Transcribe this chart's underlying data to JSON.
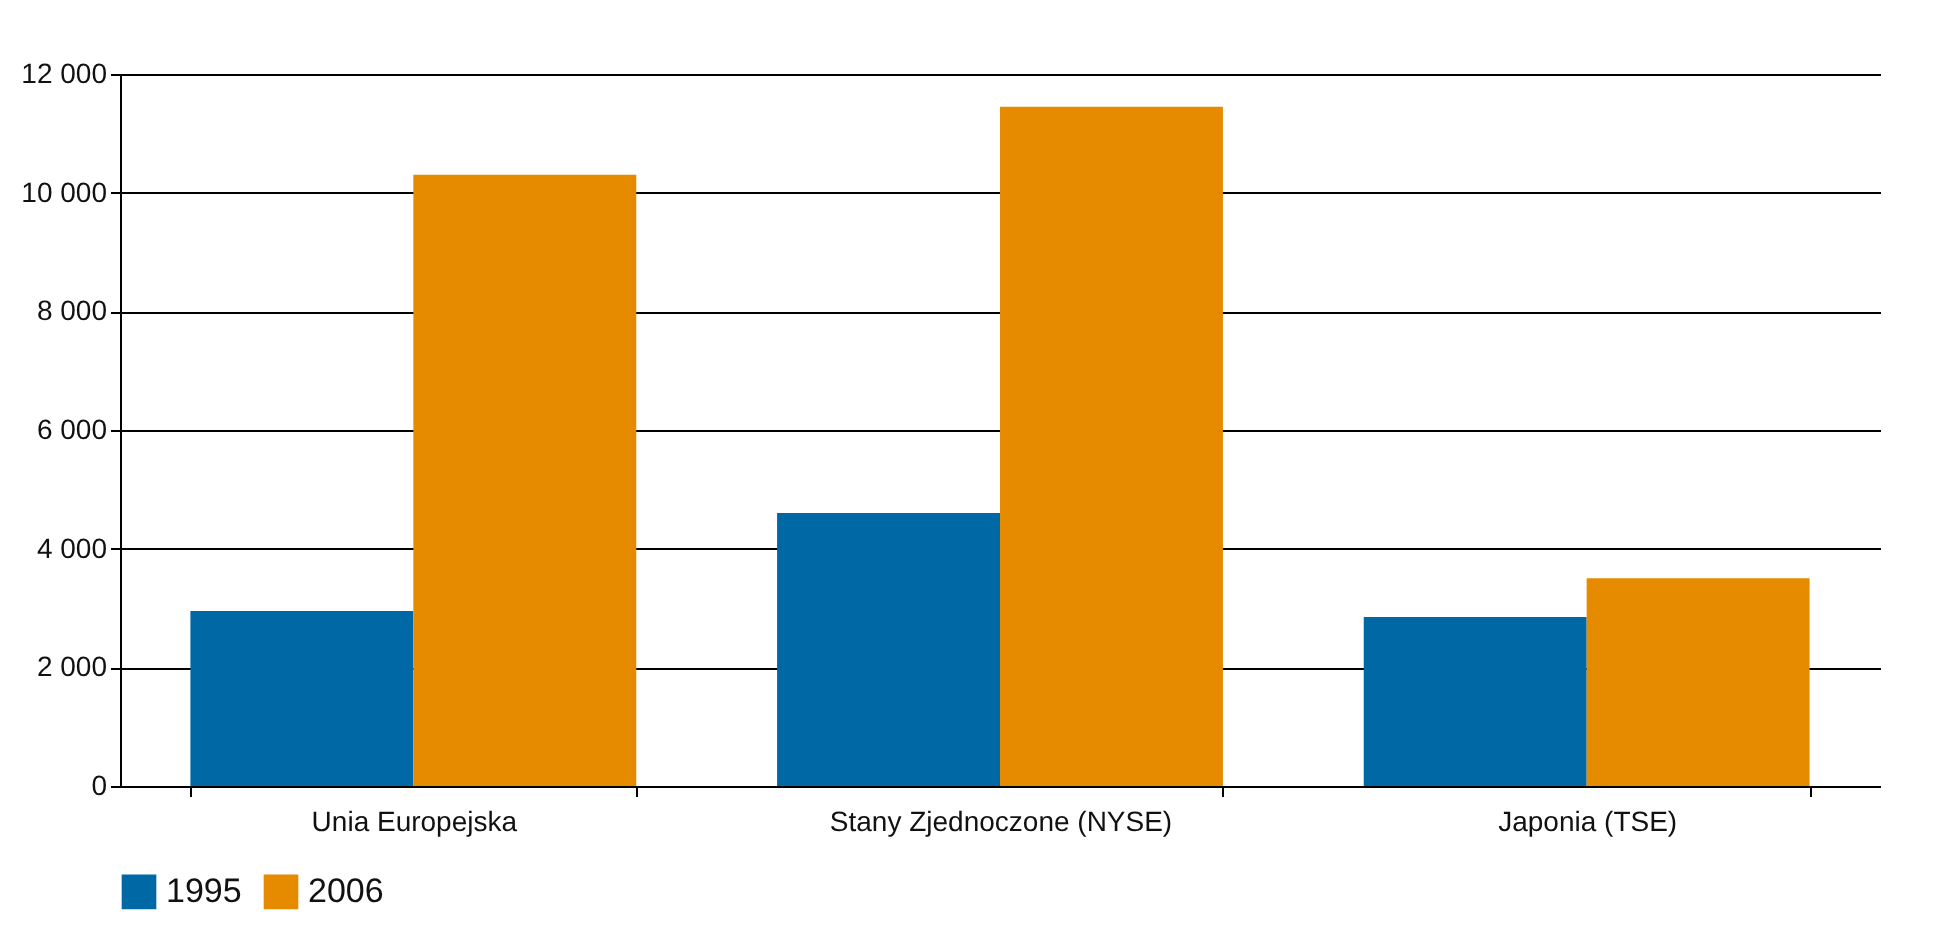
{
  "chart_data": {
    "type": "bar",
    "categories": [
      "Unia Europejska",
      "Stany Zjednoczone (NYSE)",
      "Japonia (TSE)"
    ],
    "series": [
      {
        "name": "1995",
        "color": "#0068a5",
        "values": [
          2950,
          4600,
          2850
        ]
      },
      {
        "name": "2006",
        "color": "#e68a00",
        "values": [
          10300,
          11450,
          3500
        ]
      }
    ],
    "ylim": [
      0,
      12000
    ],
    "yticks": [
      {
        "value": 0,
        "label": "0"
      },
      {
        "value": 2000,
        "label": "2 000"
      },
      {
        "value": 4000,
        "label": "4 000"
      },
      {
        "value": 6000,
        "label": "6 000"
      },
      {
        "value": 8000,
        "label": "8 000"
      },
      {
        "value": 10000,
        "label": "10 000"
      },
      {
        "value": 12000,
        "label": "12 000"
      }
    ],
    "grid": "y",
    "legend": "bottom left"
  }
}
